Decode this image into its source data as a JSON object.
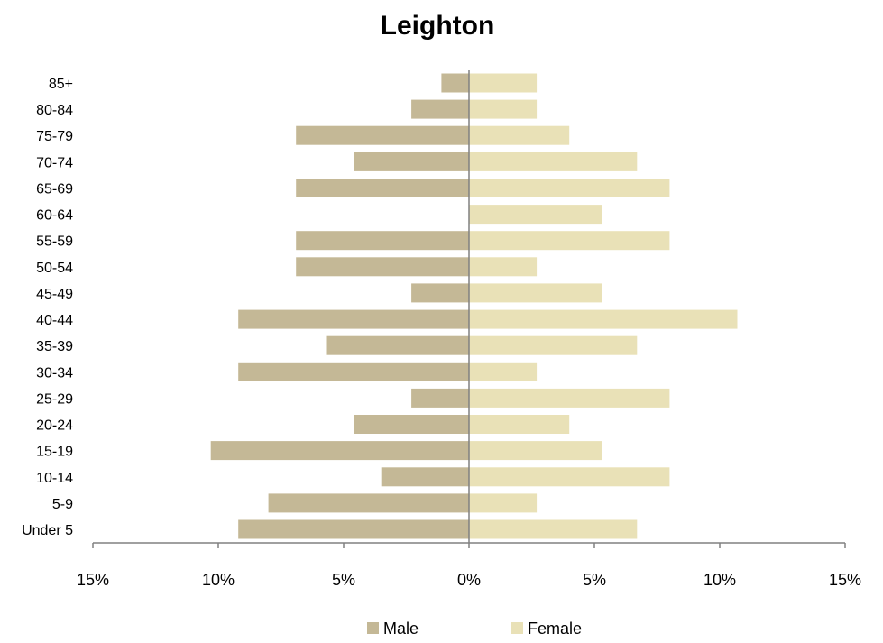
{
  "chart_data": {
    "type": "bar",
    "orientation": "horizontal",
    "title": "Leighton",
    "categories": [
      "Under 5",
      "5-9",
      "10-14",
      "15-19",
      "20-24",
      "25-29",
      "30-34",
      "35-39",
      "40-44",
      "45-49",
      "50-54",
      "55-59",
      "60-64",
      "65-69",
      "70-74",
      "75-79",
      "80-84",
      "85+"
    ],
    "series": [
      {
        "name": "Male",
        "color": "#c4b896",
        "values": [
          -9.2,
          -8.0,
          -3.5,
          -10.3,
          -4.6,
          -2.3,
          -9.2,
          -5.7,
          -9.2,
          -2.3,
          -6.9,
          -6.9,
          0.0,
          -6.9,
          -4.6,
          -6.9,
          -2.3,
          -1.1
        ]
      },
      {
        "name": "Female",
        "color": "#e9e1b7",
        "values": [
          6.7,
          2.7,
          8.0,
          5.3,
          4.0,
          8.0,
          2.7,
          6.7,
          10.7,
          5.3,
          2.7,
          8.0,
          5.3,
          8.0,
          6.7,
          4.0,
          2.7,
          2.7
        ]
      }
    ],
    "xlim": [
      -15,
      15
    ],
    "xticks": [
      -15,
      -10,
      -5,
      0,
      5,
      10,
      15
    ],
    "xtick_labels": [
      "15%",
      "10%",
      "5%",
      "0%",
      "5%",
      "10%",
      "15%"
    ],
    "grid": false,
    "legend_position": "bottom"
  }
}
